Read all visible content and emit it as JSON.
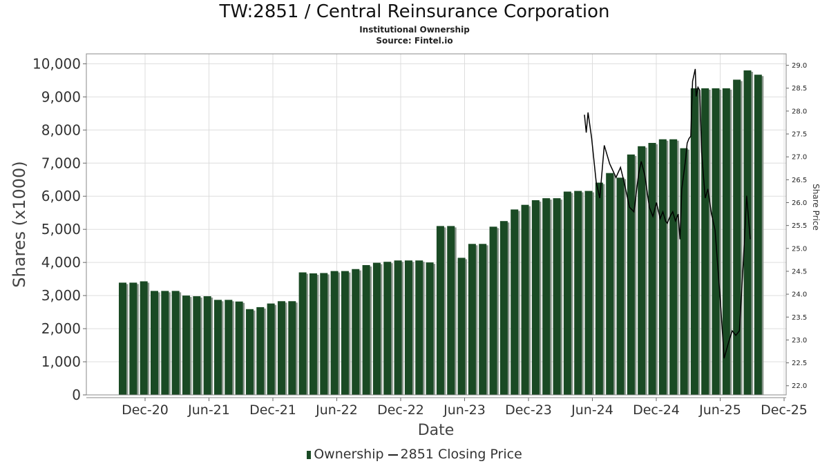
{
  "header": {
    "title": "TW:2851 / Central Reinsurance Corporation",
    "subtitle": "Institutional Ownership",
    "source": "Source: Fintel.io"
  },
  "legend": {
    "ownership": "Ownership",
    "price": "2851 Closing Price"
  },
  "colors": {
    "bar": "#1a4a24",
    "bar_shadow": "#8a968c",
    "price_line": "#000000",
    "grid": "#dddddd"
  },
  "chart_data": {
    "type": "bar",
    "title": "TW:2851 / Central Reinsurance Corporation",
    "subtitle": "Institutional Ownership",
    "xlabel": "Date",
    "ylabel": "Shares (x1000)",
    "y2label": "Share Price",
    "ylim": [
      0,
      10300
    ],
    "y2lim": [
      21.8,
      29.25
    ],
    "x_ticks": [
      "Dec-20",
      "Jun-21",
      "Dec-21",
      "Jun-22",
      "Dec-22",
      "Jun-23",
      "Dec-23",
      "Jun-24",
      "Dec-24",
      "Jun-25",
      "Dec-25"
    ],
    "y_ticks": [
      "0",
      "1,000",
      "2,000",
      "3,000",
      "4,000",
      "5,000",
      "6,000",
      "7,000",
      "8,000",
      "9,000",
      "10,000"
    ],
    "y2_ticks": [
      "22.0",
      "22.5",
      "23.0",
      "23.5",
      "24.0",
      "24.5",
      "25.0",
      "25.5",
      "26.0",
      "26.5",
      "27.0",
      "27.5",
      "28.0",
      "28.5",
      "29.0"
    ],
    "grid": true,
    "legend_position": "bottom",
    "series": [
      {
        "name": "Ownership",
        "type": "bar",
        "values": [
          3390,
          3390,
          3430,
          3140,
          3140,
          3140,
          3000,
          2980,
          2980,
          2870,
          2870,
          2820,
          2590,
          2650,
          2760,
          2830,
          2830,
          3700,
          3670,
          3680,
          3740,
          3740,
          3800,
          3920,
          3990,
          4020,
          4060,
          4060,
          4060,
          4000,
          5100,
          5100,
          4140,
          4560,
          4560,
          5080,
          5250,
          5600,
          5740,
          5880,
          5940,
          5940,
          6140,
          6160,
          6160,
          6410,
          6700,
          6560,
          7260,
          7510,
          7610,
          7720,
          7720,
          7450,
          9260,
          9260,
          9260,
          9260,
          9520,
          9800,
          9670
        ]
      },
      {
        "name": "2851 Closing Price",
        "type": "line",
        "points": [
          [
            0,
            27.92
          ],
          [
            2,
            27.53
          ],
          [
            4,
            27.97
          ],
          [
            8,
            27.41
          ],
          [
            13,
            26.45
          ],
          [
            17,
            26.1
          ],
          [
            22,
            27.25
          ],
          [
            28,
            26.85
          ],
          [
            35,
            26.55
          ],
          [
            40,
            26.77
          ],
          [
            44,
            26.45
          ],
          [
            50,
            25.9
          ],
          [
            55,
            25.8
          ],
          [
            60,
            26.62
          ],
          [
            63,
            26.9
          ],
          [
            67,
            26.6
          ],
          [
            72,
            25.9
          ],
          [
            76,
            25.7
          ],
          [
            80,
            26.0
          ],
          [
            84,
            25.65
          ],
          [
            87,
            25.8
          ],
          [
            90,
            25.6
          ],
          [
            92,
            25.55
          ],
          [
            95,
            25.7
          ],
          [
            98,
            25.8
          ],
          [
            101,
            25.6
          ],
          [
            104,
            25.75
          ],
          [
            106,
            25.2
          ],
          [
            108,
            26.3
          ],
          [
            110,
            26.6
          ],
          [
            112,
            26.9
          ],
          [
            114,
            27.3
          ],
          [
            116,
            27.4
          ],
          [
            118,
            27.45
          ],
          [
            120,
            28.65
          ],
          [
            123,
            28.92
          ],
          [
            124,
            28.32
          ],
          [
            126,
            28.52
          ],
          [
            128,
            28.45
          ],
          [
            130,
            27.1
          ],
          [
            134,
            26.1
          ],
          [
            137,
            26.3
          ],
          [
            141,
            25.75
          ],
          [
            145,
            25.4
          ],
          [
            151,
            23.8
          ],
          [
            155,
            22.6
          ],
          [
            160,
            22.95
          ],
          [
            164,
            23.2
          ],
          [
            168,
            23.1
          ],
          [
            172,
            23.2
          ],
          [
            176,
            24.6
          ],
          [
            180,
            26.15
          ],
          [
            184,
            25.2
          ]
        ]
      }
    ]
  }
}
